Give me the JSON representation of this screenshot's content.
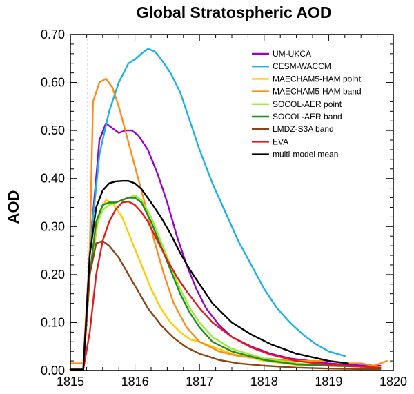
{
  "chart_data": {
    "type": "line",
    "title": "Global Stratospheric AOD",
    "xlabel": "",
    "ylabel": "AOD",
    "xlim": [
      1815,
      1820
    ],
    "ylim": [
      0,
      0.7
    ],
    "xticks": [
      1815,
      1816,
      1817,
      1818,
      1819,
      1820
    ],
    "xtick_labels": [
      "1815",
      "1816",
      "1817",
      "1818",
      "1819",
      "1820"
    ],
    "yticks": [
      0,
      0.1,
      0.2,
      0.3,
      0.4,
      0.5,
      0.6,
      0.7
    ],
    "ytick_labels": [
      "0.00",
      "0.10",
      "0.20",
      "0.30",
      "0.40",
      "0.50",
      "0.60",
      "0.70"
    ],
    "grid": false,
    "legend_position": "top-right",
    "eruption_marker_x": 1815.27,
    "series": [
      {
        "name": "UM-UKCA",
        "color": "#9900cc",
        "x": [
          1815.0,
          1815.2,
          1815.3,
          1815.45,
          1815.55,
          1815.65,
          1815.75,
          1815.85,
          1815.95,
          1816.05,
          1816.2,
          1816.35,
          1816.5,
          1816.65,
          1816.8,
          1816.95,
          1817.1,
          1817.3,
          1817.5,
          1817.8,
          1818.1,
          1818.4,
          1818.7,
          1819.0,
          1819.3,
          1819.6,
          1819.8
        ],
        "y": [
          0.002,
          0.002,
          0.25,
          0.48,
          0.515,
          0.505,
          0.495,
          0.5,
          0.5,
          0.49,
          0.46,
          0.41,
          0.35,
          0.28,
          0.22,
          0.17,
          0.13,
          0.095,
          0.07,
          0.05,
          0.035,
          0.025,
          0.02,
          0.015,
          0.012,
          0.01,
          0.01
        ]
      },
      {
        "name": "CESM-WACCM",
        "color": "#1ab2e8",
        "x": [
          1815.0,
          1815.2,
          1815.3,
          1815.45,
          1815.6,
          1815.75,
          1815.9,
          1816.0,
          1816.1,
          1816.2,
          1816.3,
          1816.35,
          1816.45,
          1816.55,
          1816.7,
          1816.85,
          1817.0,
          1817.2,
          1817.4,
          1817.6,
          1817.8,
          1818.0,
          1818.2,
          1818.4,
          1818.6,
          1818.8,
          1819.0,
          1819.25
        ],
        "y": [
          0.002,
          0.002,
          0.25,
          0.45,
          0.54,
          0.6,
          0.64,
          0.648,
          0.66,
          0.67,
          0.665,
          0.658,
          0.64,
          0.62,
          0.58,
          0.52,
          0.46,
          0.39,
          0.33,
          0.27,
          0.22,
          0.17,
          0.13,
          0.1,
          0.075,
          0.055,
          0.04,
          0.03
        ]
      },
      {
        "name": "MAECHAM5-HAM point",
        "color": "#ffcc00",
        "x": [
          1815.0,
          1815.2,
          1815.3,
          1815.45,
          1815.55,
          1815.65,
          1815.8,
          1815.95,
          1816.1,
          1816.25,
          1816.4,
          1816.55,
          1816.7,
          1816.85,
          1817.0,
          1817.2,
          1817.5,
          1818.0,
          1818.5,
          1819.0,
          1819.5,
          1819.8
        ],
        "y": [
          0.002,
          0.002,
          0.2,
          0.33,
          0.355,
          0.35,
          0.32,
          0.27,
          0.22,
          0.17,
          0.13,
          0.1,
          0.08,
          0.065,
          0.06,
          0.05,
          0.035,
          0.02,
          0.012,
          0.01,
          0.008,
          0.008
        ]
      },
      {
        "name": "MAECHAM5-HAM band",
        "color": "#ff8c1a",
        "x": [
          1815.0,
          1815.1,
          1815.2,
          1815.3,
          1815.35,
          1815.45,
          1815.55,
          1815.65,
          1815.75,
          1815.85,
          1815.95,
          1816.05,
          1816.15,
          1816.3,
          1816.45,
          1816.6,
          1816.8,
          1817.0,
          1817.3,
          1817.6,
          1818.0,
          1818.5,
          1819.0,
          1819.3,
          1819.5,
          1819.7,
          1819.8,
          1819.9
        ],
        "y": [
          0.015,
          0.015,
          0.015,
          0.25,
          0.56,
          0.6,
          0.608,
          0.59,
          0.55,
          0.5,
          0.45,
          0.4,
          0.35,
          0.27,
          0.2,
          0.14,
          0.09,
          0.06,
          0.04,
          0.03,
          0.025,
          0.02,
          0.02,
          0.015,
          0.015,
          0.01,
          0.015,
          0.02
        ]
      },
      {
        "name": "SOCOL-AER point",
        "color": "#99ee33",
        "x": [
          1815.0,
          1815.2,
          1815.3,
          1815.4,
          1815.5,
          1815.6,
          1815.7,
          1815.8,
          1815.9,
          1816.0,
          1816.1,
          1816.25,
          1816.4,
          1816.55,
          1816.7,
          1816.85,
          1817.0,
          1817.2,
          1817.5,
          1818.0,
          1818.5,
          1819.0,
          1819.5
        ],
        "y": [
          0.002,
          0.002,
          0.2,
          0.3,
          0.335,
          0.345,
          0.35,
          0.355,
          0.36,
          0.365,
          0.355,
          0.32,
          0.27,
          0.22,
          0.17,
          0.13,
          0.1,
          0.07,
          0.045,
          0.025,
          0.015,
          0.01,
          0.008
        ]
      },
      {
        "name": "SOCOL-AER band",
        "color": "#1f8c1f",
        "x": [
          1815.0,
          1815.2,
          1815.3,
          1815.4,
          1815.5,
          1815.6,
          1815.7,
          1815.8,
          1815.9,
          1816.0,
          1816.1,
          1816.25,
          1816.4,
          1816.55,
          1816.7,
          1816.85,
          1817.0,
          1817.2,
          1817.5,
          1818.0,
          1818.5,
          1819.0,
          1819.5
        ],
        "y": [
          0.002,
          0.002,
          0.2,
          0.31,
          0.345,
          0.35,
          0.35,
          0.355,
          0.36,
          0.36,
          0.35,
          0.31,
          0.26,
          0.21,
          0.16,
          0.12,
          0.09,
          0.06,
          0.04,
          0.022,
          0.013,
          0.01,
          0.008
        ]
      },
      {
        "name": "LMDZ-S3A band",
        "color": "#8c4414",
        "x": [
          1815.0,
          1815.2,
          1815.3,
          1815.4,
          1815.5,
          1815.6,
          1815.75,
          1815.9,
          1816.05,
          1816.2,
          1816.4,
          1816.6,
          1816.8,
          1817.0,
          1817.3,
          1817.6,
          1818.0,
          1818.5,
          1819.0,
          1819.5,
          1819.8
        ],
        "y": [
          0.002,
          0.002,
          0.2,
          0.265,
          0.27,
          0.26,
          0.235,
          0.2,
          0.165,
          0.13,
          0.095,
          0.068,
          0.048,
          0.035,
          0.022,
          0.015,
          0.01,
          0.006,
          0.004,
          0.003,
          0.003
        ]
      },
      {
        "name": "EVA",
        "color": "#e51a1a",
        "x": [
          1815.0,
          1815.2,
          1815.3,
          1815.4,
          1815.5,
          1815.6,
          1815.7,
          1815.8,
          1815.9,
          1816.0,
          1816.1,
          1816.2,
          1816.35,
          1816.5,
          1816.65,
          1816.8,
          1817.0,
          1817.2,
          1817.5,
          1817.8,
          1818.1,
          1818.5,
          1819.0,
          1819.5,
          1819.8
        ],
        "y": [
          0.002,
          0.002,
          0.08,
          0.2,
          0.27,
          0.31,
          0.335,
          0.35,
          0.352,
          0.345,
          0.33,
          0.31,
          0.27,
          0.23,
          0.195,
          0.165,
          0.13,
          0.1,
          0.07,
          0.048,
          0.033,
          0.02,
          0.012,
          0.008,
          0.006
        ]
      },
      {
        "name": "multi-model mean",
        "color": "#000000",
        "x": [
          1815.0,
          1815.2,
          1815.3,
          1815.4,
          1815.5,
          1815.6,
          1815.7,
          1815.8,
          1815.9,
          1816.0,
          1816.1,
          1816.25,
          1816.4,
          1816.55,
          1816.7,
          1816.85,
          1817.0,
          1817.2,
          1817.5,
          1817.8,
          1818.1,
          1818.5,
          1819.0,
          1819.3
        ],
        "y": [
          0.002,
          0.002,
          0.24,
          0.34,
          0.375,
          0.39,
          0.394,
          0.395,
          0.395,
          0.39,
          0.378,
          0.35,
          0.32,
          0.285,
          0.245,
          0.21,
          0.18,
          0.14,
          0.1,
          0.075,
          0.055,
          0.035,
          0.02,
          0.015
        ]
      }
    ]
  }
}
